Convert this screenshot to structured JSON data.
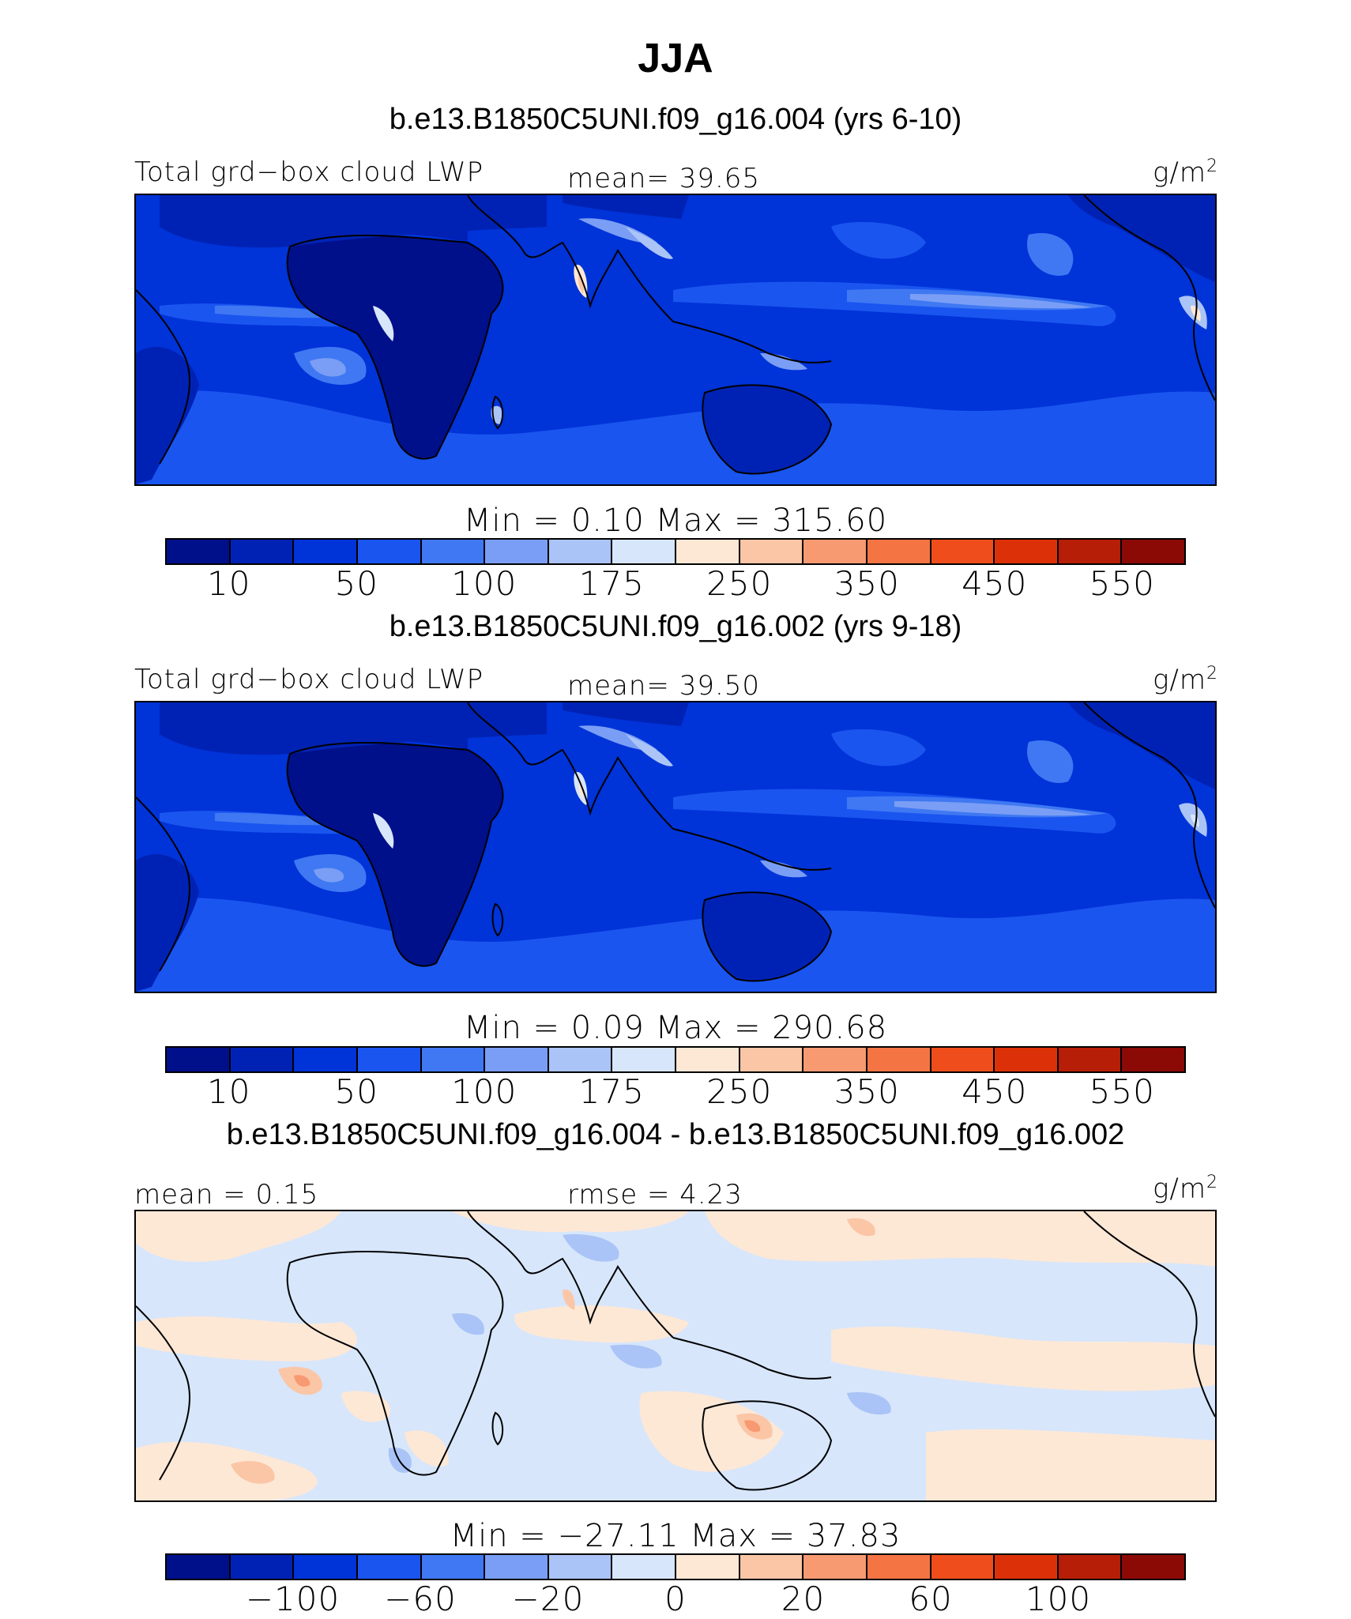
{
  "figure": {
    "season": "JJA"
  },
  "panels": [
    {
      "case_title": "b.e13.B1850C5UNI.f09_g16.004 (yrs 6-10)",
      "left_string": "Total grd−box cloud LWP",
      "center_string": "mean=   39.65",
      "units": "g/m",
      "units_sup": "2",
      "min_max": "Min =    0.10  Max =  315.60",
      "colorbar_labels": [
        "10",
        "50",
        "100",
        "175",
        "250",
        "350",
        "450",
        "550"
      ],
      "colorbar_colors": [
        "#00108a",
        "#0022b4",
        "#0033d8",
        "#1a55f0",
        "#3f78f2",
        "#7a9ef5",
        "#aac4f7",
        "#d7e6fb",
        "#fde8d6",
        "#fbc6a6",
        "#f79a72",
        "#f47444",
        "#ef4e1c",
        "#dc3108",
        "#b71e07",
        "#8c0a05"
      ]
    },
    {
      "case_title": "b.e13.B1850C5UNI.f09_g16.002 (yrs 9-18)",
      "left_string": "Total grd−box cloud LWP",
      "center_string": "mean=   39.50",
      "units": "g/m",
      "units_sup": "2",
      "min_max": "Min =    0.09  Max =  290.68",
      "colorbar_labels": [
        "10",
        "50",
        "100",
        "175",
        "250",
        "350",
        "450",
        "550"
      ],
      "colorbar_colors": [
        "#00108a",
        "#0022b4",
        "#0033d8",
        "#1a55f0",
        "#3f78f2",
        "#7a9ef5",
        "#aac4f7",
        "#d7e6fb",
        "#fde8d6",
        "#fbc6a6",
        "#f79a72",
        "#f47444",
        "#ef4e1c",
        "#dc3108",
        "#b71e07",
        "#8c0a05"
      ]
    },
    {
      "case_title": "b.e13.B1850C5UNI.f09_g16.004 - b.e13.B1850C5UNI.f09_g16.002",
      "left_string": "mean =    0.15",
      "center_string": "rmse =    4.23",
      "units": "g/m",
      "units_sup": "2",
      "min_max": "Min = −27.11  Max =   37.83",
      "colorbar_labels": [
        "−100",
        "−60",
        "−20",
        "0",
        "20",
        "60",
        "100"
      ],
      "colorbar_colors": [
        "#00108a",
        "#0022b4",
        "#0033d8",
        "#1a55f0",
        "#3f78f2",
        "#7a9ef5",
        "#aac4f7",
        "#d7e6fb",
        "#fde8d6",
        "#fbc6a6",
        "#f79a72",
        "#f47444",
        "#ef4e1c",
        "#dc3108",
        "#b71e07",
        "#8c0a05"
      ]
    }
  ]
}
